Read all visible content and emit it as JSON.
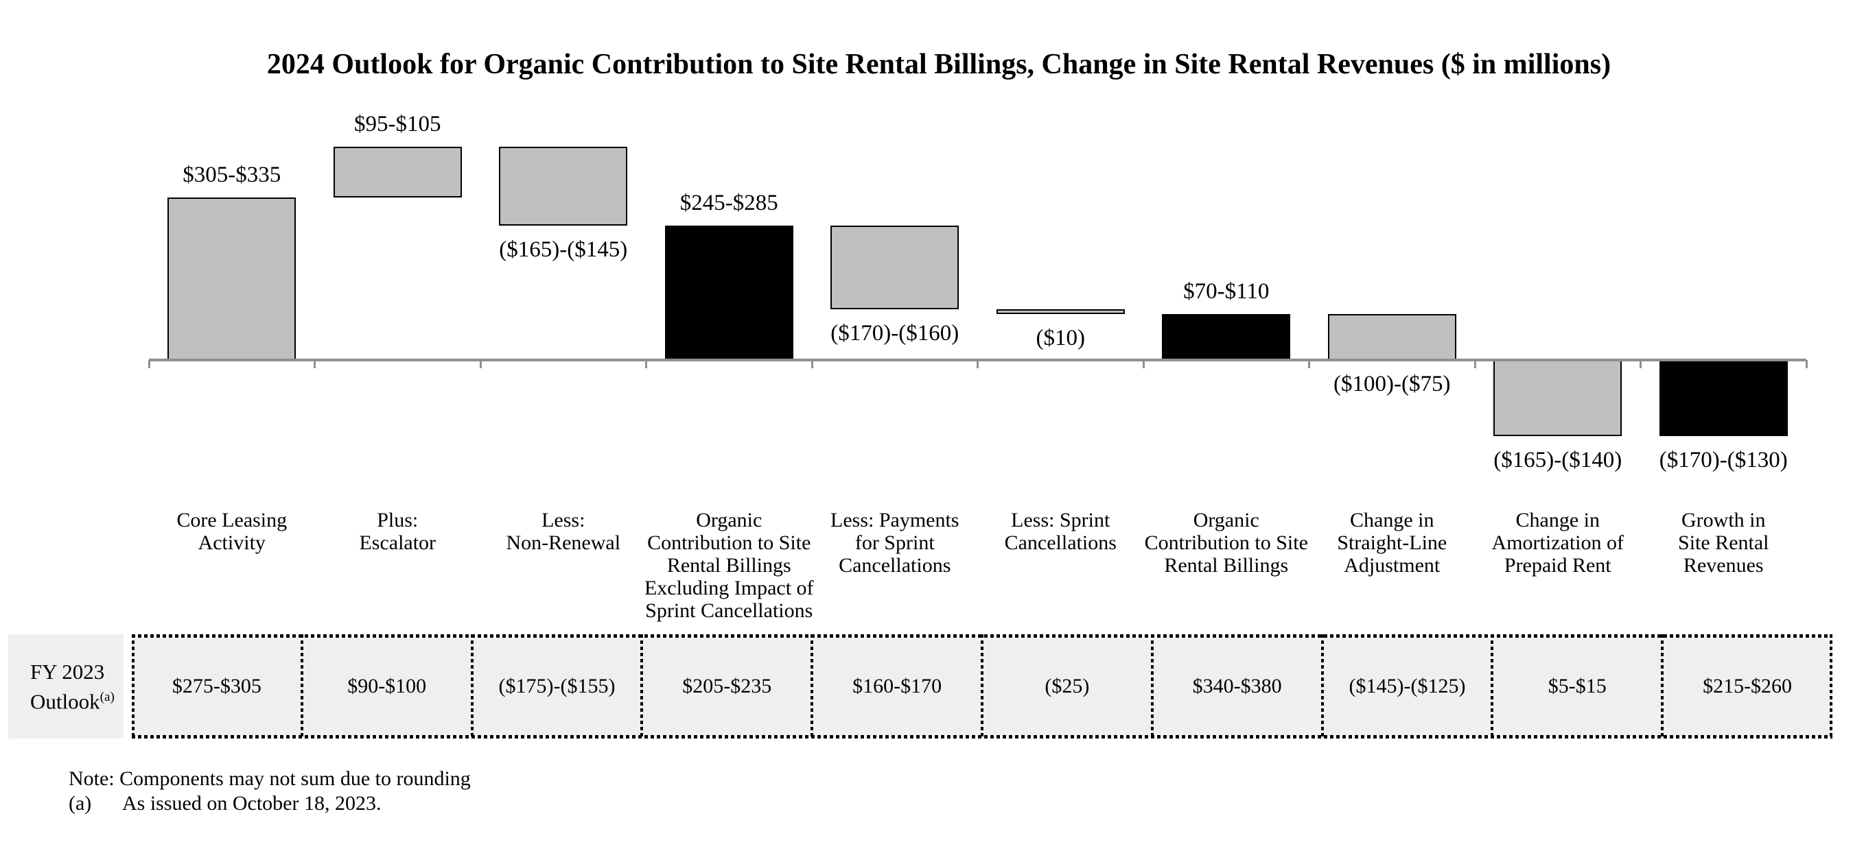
{
  "title": "2024 Outlook for Organic Contribution to Site Rental Billings, Change in Site Rental Revenues ($ in millions)",
  "chart_data": {
    "type": "bar",
    "subtype": "waterfall",
    "title": "2024 Outlook for Organic Contribution to Site Rental Billings, Change in Site Rental Revenues ($ in millions)",
    "unit": "$ in millions",
    "baseline_value": 0,
    "grid": false,
    "legend": false,
    "colors": {
      "step_bar": "#C0C0C0",
      "total_bar": "#000000",
      "bar_border": "#000000",
      "axis": "#8F8F8F",
      "table_bg": "#EFEFEF",
      "table_border": "#000000"
    },
    "steps": [
      {
        "label": "Core Leasing Activity",
        "label_lines": [
          "Core Leasing",
          "Activity"
        ],
        "range": "$305-$335",
        "low": 305,
        "high": 335,
        "role": "increase",
        "label_side": "above",
        "fy2023": "$275-$305"
      },
      {
        "label": "Plus: Escalator",
        "label_lines": [
          "Plus:",
          "Escalator"
        ],
        "range": "$95-$105",
        "low": 95,
        "high": 105,
        "role": "increase",
        "label_side": "above",
        "fy2023": "$90-$100"
      },
      {
        "label": "Less: Non-Renewal",
        "label_lines": [
          "Less:",
          "Non-Renewal"
        ],
        "range": "($165)-($145)",
        "low": -165,
        "high": -145,
        "role": "decrease",
        "label_side": "below",
        "fy2023": "($175)-($155)"
      },
      {
        "label": "Organic Contribution to Site Rental Billings Excluding Impact of Sprint Cancellations",
        "label_lines": [
          "Organic",
          "Contribution to Site",
          "Rental Billings",
          "Excluding Impact of",
          "Sprint Cancellations"
        ],
        "range": "$245-$285",
        "low": 245,
        "high": 285,
        "role": "subtotal",
        "label_side": "above",
        "fy2023": "$205-$235"
      },
      {
        "label": "Less: Payments for Sprint Cancellations",
        "label_lines": [
          "Less: Payments",
          "for Sprint",
          "Cancellations"
        ],
        "range": "($170)-($160)",
        "low": -170,
        "high": -160,
        "role": "decrease",
        "label_side": "below",
        "fy2023": "$160-$170"
      },
      {
        "label": "Less: Sprint Cancellations",
        "label_lines": [
          "Less: Sprint",
          "Cancellations"
        ],
        "range": "($10)",
        "low": -10,
        "high": -10,
        "role": "decrease",
        "label_side": "below",
        "fy2023": "($25)"
      },
      {
        "label": "Organic Contribution to Site Rental Billings",
        "label_lines": [
          "Organic",
          "Contribution to Site",
          "Rental Billings"
        ],
        "range": "$70-$110",
        "low": 70,
        "high": 110,
        "role": "subtotal",
        "label_side": "above",
        "fy2023": "$340-$380"
      },
      {
        "label": "Change in Straight-Line Adjustment",
        "label_lines": [
          "Change in",
          "Straight-Line",
          "Adjustment"
        ],
        "range": "($100)-($75)",
        "low": -100,
        "high": -75,
        "role": "decrease",
        "label_side": "below",
        "fy2023": "($145)-($125)"
      },
      {
        "label": "Change in Amortization of Prepaid Rent",
        "label_lines": [
          "Change in",
          "Amortization of",
          "Prepaid Rent"
        ],
        "range": "($165)-($140)",
        "low": -165,
        "high": -140,
        "role": "decrease",
        "label_side": "below",
        "fy2023": "$5-$15"
      },
      {
        "label": "Growth in Site Rental Revenues",
        "label_lines": [
          "Growth in",
          "Site Rental",
          "Revenues"
        ],
        "range": "($170)-($130)",
        "low": -170,
        "high": -130,
        "role": "total",
        "label_side": "below",
        "fy2023": "$215-$260"
      }
    ],
    "fy2023_row": {
      "header_lines": [
        "FY 2023",
        "Outlook"
      ],
      "header_superscript": "(a)"
    },
    "notes": {
      "line1": "Note: Components may not sum due to rounding",
      "line2_marker": "(a)",
      "line2_text": "As issued on October 18, 2023."
    }
  }
}
